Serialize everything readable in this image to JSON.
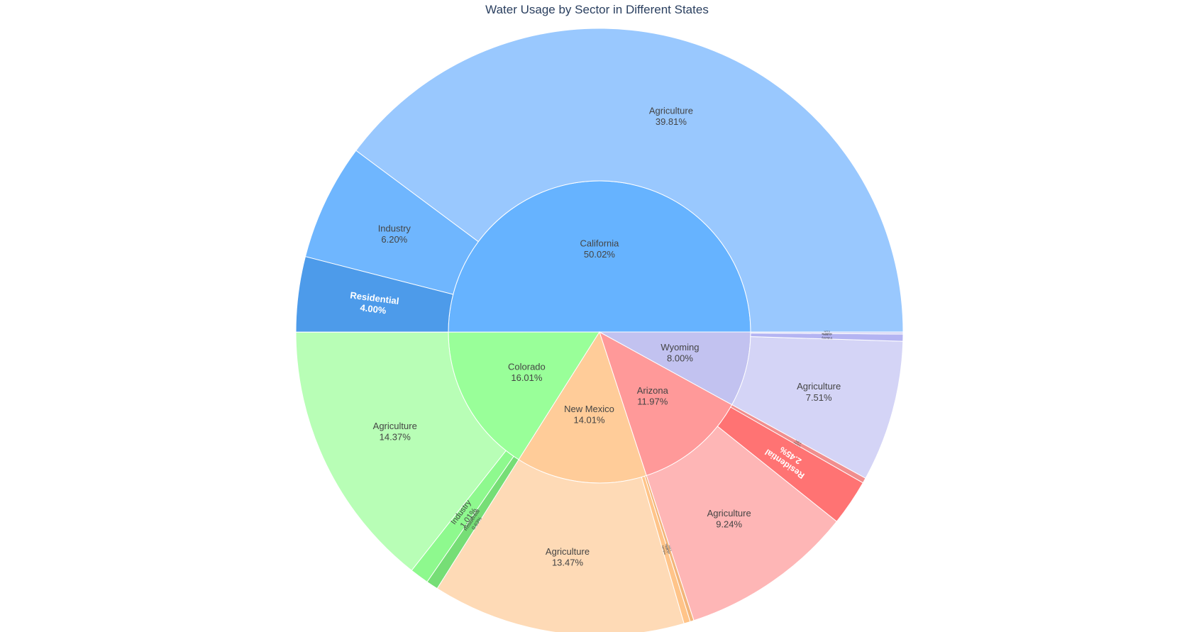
{
  "chart_data": {
    "type": "sunburst",
    "title": "Water Usage by Sector in Different States",
    "total_percent_of": "all states",
    "states": [
      {
        "name": "California",
        "percent": "50.02%",
        "value": 50.02,
        "color": "#66b3ff",
        "sectors": [
          {
            "name": "Agriculture",
            "percent": "39.81%",
            "value": 39.81,
            "color": "#99c8fe"
          },
          {
            "name": "Industry",
            "percent": "6.20%",
            "value": 6.2,
            "color": "#6fb6fe"
          },
          {
            "name": "Residential",
            "percent": "4.00%",
            "value": 4.0,
            "color": "#4d9bea",
            "light_text": true
          }
        ]
      },
      {
        "name": "Colorado",
        "percent": "16.01%",
        "value": 16.01,
        "color": "#99ff99",
        "sectors": [
          {
            "name": "Agriculture",
            "percent": "14.37%",
            "value": 14.37,
            "color": "#b8feb6"
          },
          {
            "name": "Industry",
            "percent": "1.01%",
            "value": 1.01,
            "color": "#8ef98e"
          },
          {
            "name": "Residential",
            "percent": "0.63%",
            "value": 0.63,
            "color": "#76de76"
          }
        ]
      },
      {
        "name": "New Mexico",
        "percent": "14.01%",
        "value": 14.01,
        "color": "#ffcc99",
        "sectors": [
          {
            "name": "Agriculture",
            "percent": "13.47%",
            "value": 13.47,
            "color": "#fedab6"
          },
          {
            "name": "Industry",
            "percent": "0.34%",
            "value": 0.34,
            "color": "#ffc489"
          },
          {
            "name": "Residential",
            "percent": "0.20%",
            "value": 0.2,
            "color": "#f2b57a"
          }
        ]
      },
      {
        "name": "Arizona",
        "percent": "11.97%",
        "value": 11.97,
        "color": "#ff9999",
        "sectors": [
          {
            "name": "Agriculture",
            "percent": "9.24%",
            "value": 9.24,
            "color": "#feb6b6"
          },
          {
            "name": "Residential",
            "percent": "2.45%",
            "value": 2.45,
            "color": "#ff7373",
            "light_text": true
          },
          {
            "name": "Industry",
            "percent": "0.28%",
            "value": 0.28,
            "color": "#f08e8e"
          }
        ]
      },
      {
        "name": "Wyoming",
        "percent": "8.00%",
        "value": 8.0,
        "color": "#c2c2f0",
        "sectors": [
          {
            "name": "Agriculture",
            "percent": "7.51%",
            "value": 7.51,
            "color": "#d4d4f6"
          },
          {
            "name": "Industry",
            "percent": "0.38%",
            "value": 0.38,
            "color": "#b4b4f2"
          },
          {
            "name": "Residential",
            "percent": "0.11%",
            "value": 0.11,
            "color": "#d0d0f4"
          }
        ]
      }
    ]
  }
}
